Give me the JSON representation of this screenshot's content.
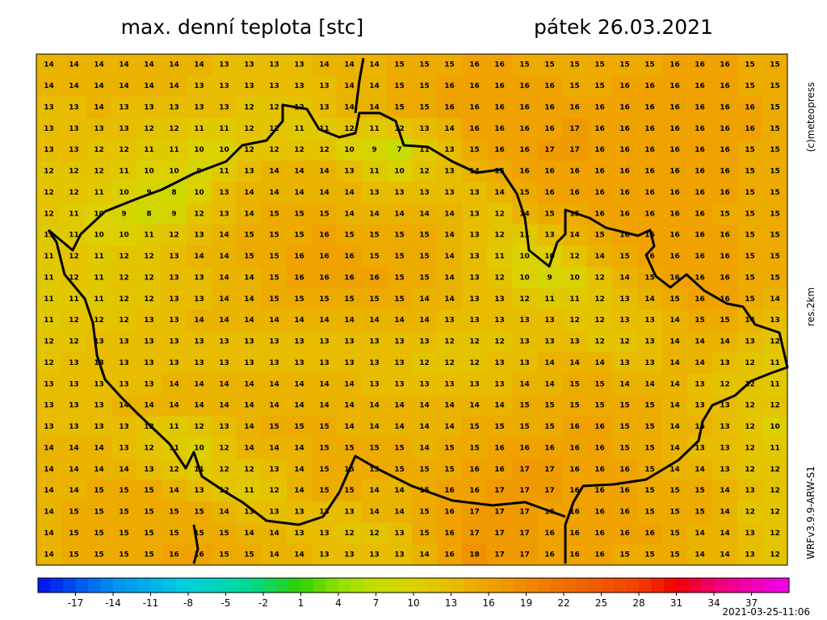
{
  "header": {
    "title": "max. denní teplota [stc]",
    "date": "pátek 26.03.2021"
  },
  "side_labels": {
    "copyright": "(c)meteopress",
    "resolution": "res.2km",
    "model": "WRFv3.9.9-ARW-S1"
  },
  "footer": {
    "timestamp": "2021-03-25-11:06"
  },
  "colorbar": {
    "range": [
      -20,
      40
    ],
    "ticks": [
      -17,
      -14,
      -11,
      -8,
      -5,
      -2,
      1,
      4,
      7,
      10,
      13,
      16,
      19,
      22,
      25,
      28,
      31,
      34,
      37
    ],
    "color_stops": [
      [
        -20,
        "#0010f0"
      ],
      [
        -14,
        "#0090f0"
      ],
      [
        -8,
        "#00d0e0"
      ],
      [
        -3,
        "#00d890"
      ],
      [
        1,
        "#30d000"
      ],
      [
        4,
        "#90e000"
      ],
      [
        7,
        "#c4dc00"
      ],
      [
        10,
        "#dcd000"
      ],
      [
        13,
        "#e8bc00"
      ],
      [
        16,
        "#efa200"
      ],
      [
        22,
        "#f07000"
      ],
      [
        28,
        "#f04000"
      ],
      [
        31,
        "#f00000"
      ],
      [
        34,
        "#f00070"
      ],
      [
        40,
        "#f000f0"
      ]
    ]
  },
  "grid": {
    "values": [
      [
        14,
        14,
        14,
        14,
        14,
        14,
        14,
        13,
        13,
        13,
        13,
        14,
        14,
        14,
        15,
        15,
        15,
        16,
        16,
        15,
        15,
        15,
        15,
        15,
        15,
        16,
        16,
        16,
        15,
        15
      ],
      [
        14,
        14,
        14,
        14,
        14,
        14,
        13,
        13,
        13,
        13,
        13,
        13,
        14,
        14,
        15,
        15,
        16,
        16,
        16,
        16,
        16,
        15,
        15,
        16,
        16,
        16,
        16,
        16,
        15,
        15
      ],
      [
        13,
        13,
        14,
        13,
        13,
        13,
        13,
        13,
        12,
        12,
        12,
        13,
        14,
        14,
        15,
        15,
        16,
        16,
        16,
        16,
        16,
        16,
        16,
        16,
        16,
        16,
        16,
        16,
        16,
        15
      ],
      [
        13,
        13,
        13,
        13,
        12,
        12,
        11,
        11,
        12,
        12,
        11,
        11,
        12,
        11,
        12,
        13,
        14,
        16,
        16,
        16,
        16,
        17,
        16,
        16,
        16,
        16,
        16,
        16,
        16,
        15
      ],
      [
        13,
        13,
        12,
        12,
        11,
        11,
        10,
        10,
        12,
        12,
        12,
        12,
        10,
        9,
        7,
        11,
        13,
        15,
        16,
        16,
        17,
        17,
        16,
        16,
        16,
        16,
        16,
        16,
        15,
        15
      ],
      [
        12,
        12,
        12,
        11,
        10,
        10,
        9,
        11,
        13,
        14,
        14,
        14,
        13,
        11,
        10,
        12,
        13,
        14,
        15,
        16,
        16,
        16,
        16,
        16,
        16,
        16,
        16,
        16,
        15,
        15
      ],
      [
        12,
        12,
        11,
        10,
        9,
        8,
        10,
        13,
        14,
        14,
        14,
        14,
        14,
        13,
        13,
        13,
        13,
        13,
        14,
        15,
        16,
        16,
        16,
        16,
        16,
        16,
        16,
        16,
        15,
        15
      ],
      [
        12,
        11,
        10,
        9,
        8,
        9,
        12,
        13,
        14,
        15,
        15,
        15,
        14,
        14,
        14,
        14,
        14,
        13,
        12,
        14,
        15,
        15,
        16,
        16,
        16,
        16,
        16,
        15,
        15,
        15
      ],
      [
        11,
        11,
        10,
        10,
        11,
        12,
        13,
        14,
        15,
        15,
        15,
        16,
        15,
        15,
        15,
        15,
        14,
        13,
        12,
        11,
        13,
        14,
        15,
        16,
        16,
        16,
        16,
        16,
        15,
        15
      ],
      [
        11,
        12,
        11,
        12,
        12,
        13,
        14,
        14,
        15,
        15,
        16,
        16,
        16,
        15,
        15,
        15,
        14,
        13,
        11,
        10,
        10,
        12,
        14,
        15,
        16,
        16,
        16,
        16,
        15,
        15
      ],
      [
        11,
        12,
        11,
        12,
        12,
        13,
        13,
        14,
        14,
        15,
        16,
        16,
        16,
        16,
        15,
        15,
        14,
        13,
        12,
        10,
        9,
        10,
        12,
        14,
        15,
        16,
        16,
        16,
        15,
        15
      ],
      [
        11,
        11,
        11,
        12,
        12,
        13,
        13,
        14,
        14,
        15,
        15,
        15,
        15,
        15,
        15,
        14,
        14,
        13,
        13,
        12,
        11,
        11,
        12,
        13,
        14,
        15,
        16,
        16,
        15,
        14
      ],
      [
        11,
        12,
        12,
        12,
        13,
        13,
        14,
        14,
        14,
        14,
        14,
        14,
        14,
        14,
        14,
        14,
        13,
        13,
        13,
        13,
        13,
        12,
        12,
        13,
        13,
        14,
        15,
        15,
        14,
        13
      ],
      [
        12,
        12,
        13,
        13,
        13,
        13,
        13,
        13,
        13,
        13,
        13,
        13,
        13,
        13,
        13,
        13,
        12,
        12,
        12,
        13,
        13,
        13,
        12,
        12,
        13,
        14,
        14,
        14,
        13,
        12
      ],
      [
        12,
        13,
        13,
        13,
        13,
        13,
        13,
        13,
        13,
        13,
        13,
        13,
        13,
        13,
        13,
        12,
        12,
        12,
        13,
        13,
        14,
        14,
        14,
        13,
        13,
        14,
        14,
        13,
        12,
        11
      ],
      [
        13,
        13,
        13,
        13,
        13,
        14,
        14,
        14,
        14,
        14,
        14,
        14,
        14,
        13,
        13,
        13,
        13,
        13,
        13,
        14,
        14,
        15,
        15,
        14,
        14,
        14,
        13,
        12,
        12,
        11
      ],
      [
        13,
        13,
        13,
        14,
        14,
        14,
        14,
        14,
        14,
        14,
        14,
        14,
        14,
        14,
        14,
        14,
        14,
        14,
        14,
        15,
        15,
        15,
        15,
        15,
        15,
        14,
        13,
        13,
        12,
        12
      ],
      [
        13,
        13,
        13,
        13,
        12,
        11,
        12,
        13,
        14,
        15,
        15,
        15,
        14,
        14,
        14,
        14,
        14,
        15,
        15,
        15,
        15,
        16,
        16,
        15,
        15,
        14,
        14,
        13,
        12,
        10
      ],
      [
        14,
        14,
        14,
        13,
        12,
        11,
        10,
        12,
        14,
        14,
        14,
        15,
        15,
        15,
        15,
        14,
        15,
        15,
        16,
        16,
        16,
        16,
        16,
        15,
        15,
        14,
        13,
        13,
        12,
        11
      ],
      [
        14,
        14,
        14,
        14,
        13,
        12,
        11,
        12,
        12,
        13,
        14,
        15,
        15,
        15,
        15,
        15,
        15,
        16,
        16,
        17,
        17,
        16,
        16,
        16,
        15,
        14,
        14,
        13,
        12,
        12
      ],
      [
        14,
        14,
        15,
        15,
        15,
        14,
        13,
        12,
        11,
        12,
        14,
        15,
        15,
        14,
        14,
        15,
        16,
        16,
        17,
        17,
        17,
        16,
        16,
        16,
        15,
        15,
        15,
        14,
        13,
        12
      ],
      [
        14,
        15,
        15,
        15,
        15,
        15,
        15,
        14,
        13,
        13,
        13,
        13,
        13,
        14,
        14,
        15,
        16,
        17,
        17,
        17,
        16,
        16,
        16,
        16,
        15,
        15,
        15,
        14,
        12,
        12
      ],
      [
        14,
        15,
        15,
        15,
        15,
        15,
        15,
        15,
        14,
        14,
        13,
        13,
        12,
        12,
        13,
        15,
        16,
        17,
        17,
        17,
        16,
        16,
        16,
        16,
        16,
        15,
        14,
        14,
        13,
        12
      ],
      [
        14,
        15,
        15,
        15,
        15,
        16,
        16,
        15,
        15,
        14,
        14,
        13,
        13,
        13,
        13,
        14,
        16,
        18,
        17,
        17,
        16,
        16,
        16,
        15,
        15,
        15,
        14,
        14,
        13,
        12
      ]
    ]
  }
}
